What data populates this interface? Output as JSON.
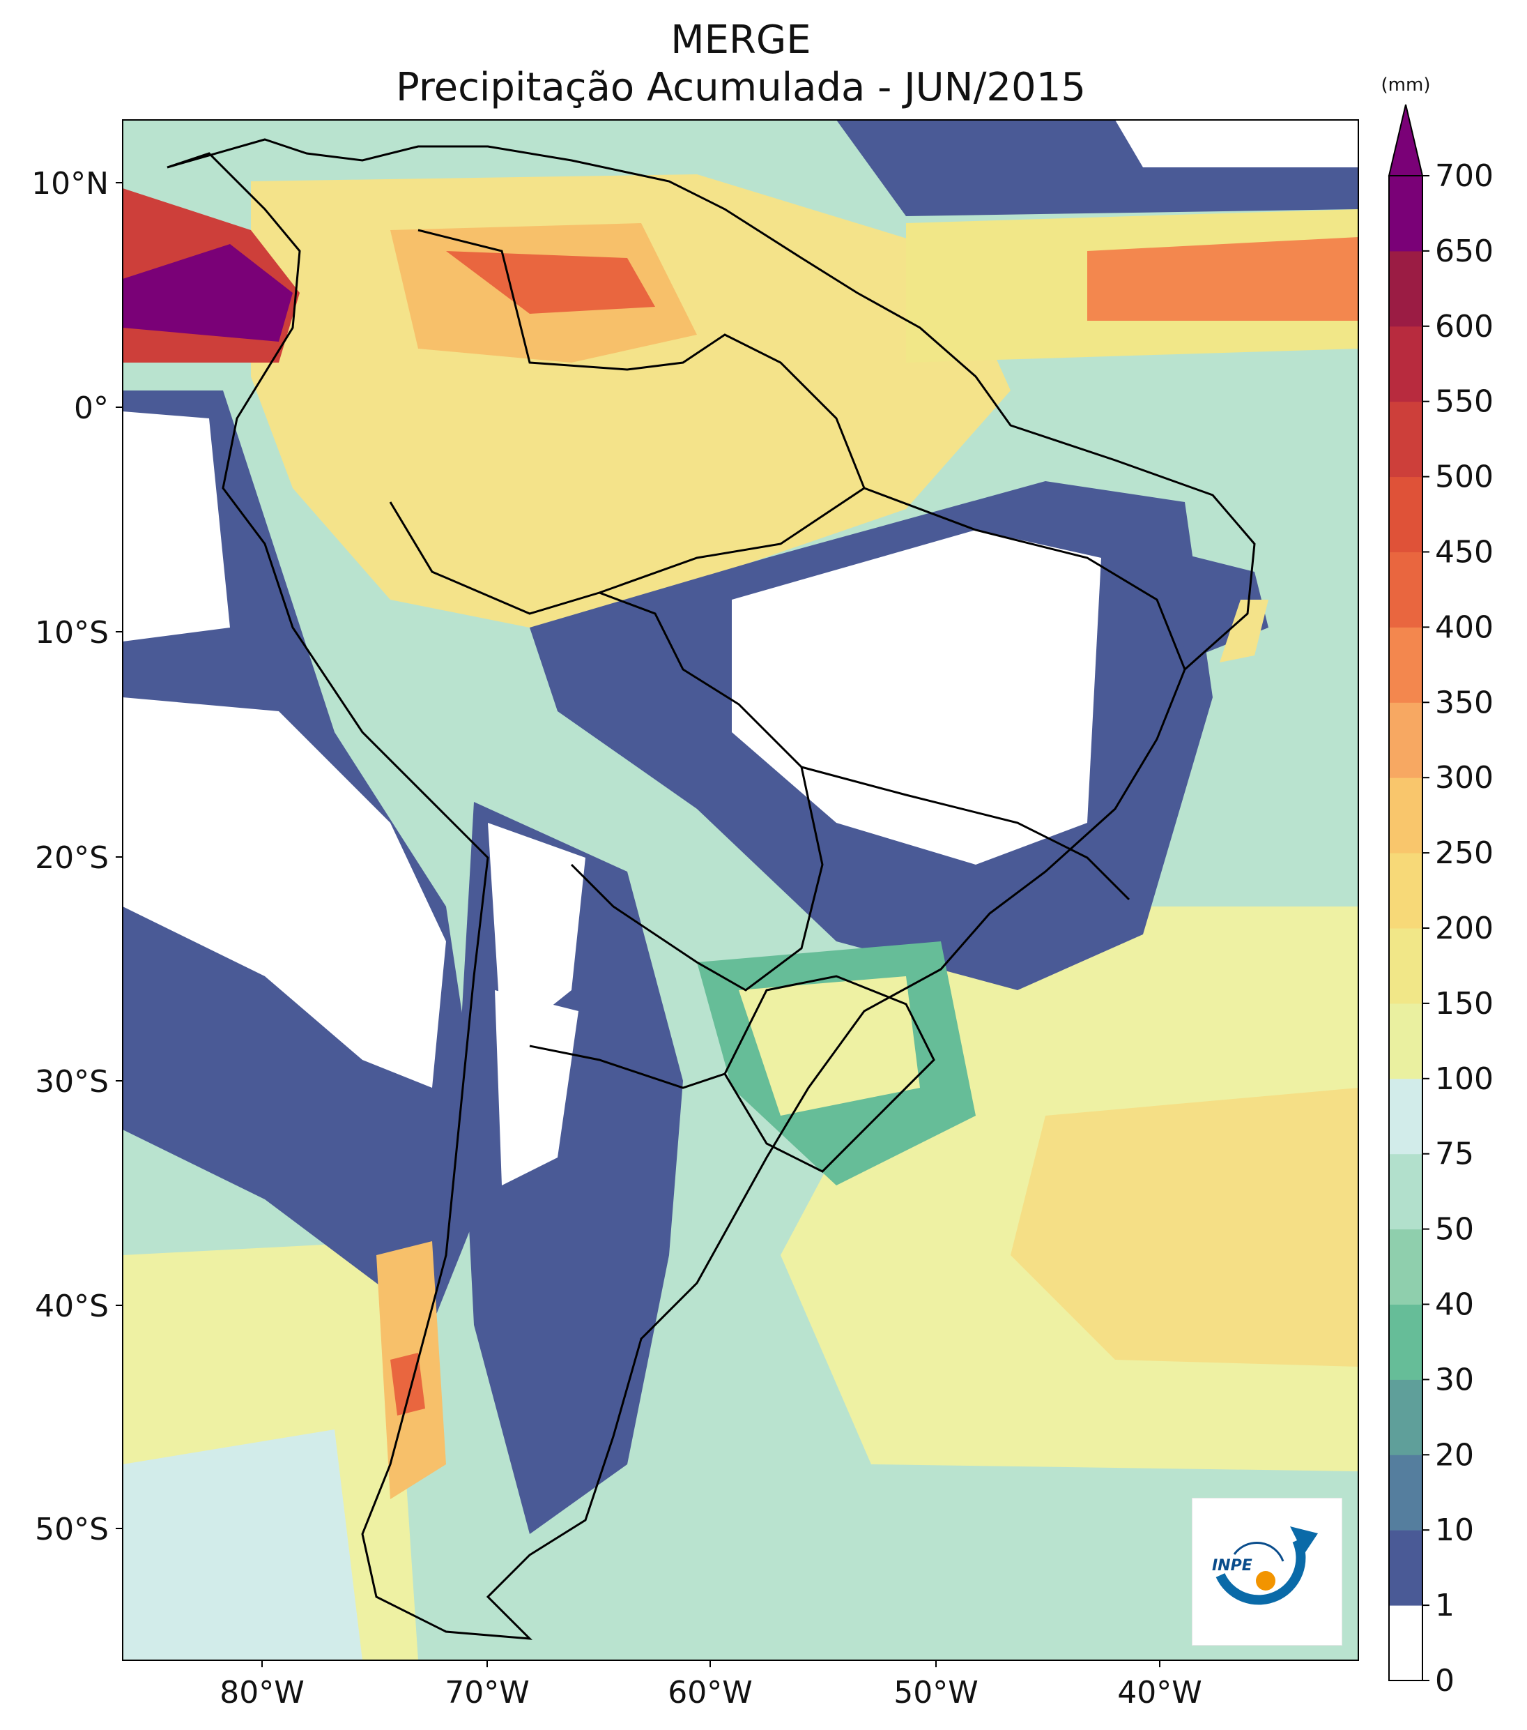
{
  "title": "MERGE",
  "subtitle": "Precipitação Acumulada - JUN/2015",
  "map": {
    "lon_ticks": [
      "80°W",
      "70°W",
      "60°W",
      "50°W",
      "40°W"
    ],
    "lat_ticks": [
      "10°N",
      "0°",
      "10°S",
      "20°S",
      "30°S",
      "40°S",
      "50°S"
    ]
  },
  "colorbar": {
    "unit": "(mm)",
    "levels": [
      "0",
      "1",
      "10",
      "20",
      "30",
      "40",
      "50",
      "75",
      "100",
      "150",
      "200",
      "250",
      "300",
      "350",
      "400",
      "450",
      "500",
      "550",
      "600",
      "650",
      "700"
    ],
    "colors": [
      "#ffffff",
      "#4a5a96",
      "#557e9e",
      "#5f9f9a",
      "#66bd98",
      "#8fcfad",
      "#b2e0cc",
      "#d2ecea",
      "#eaf0a0",
      "#f1e788",
      "#f7d978",
      "#f9c66c",
      "#f7a862",
      "#f3874e",
      "#e9663f",
      "#df5238",
      "#cd3f3a",
      "#b82b3e",
      "#9b1c44",
      "#7a0177"
    ]
  },
  "logo": {
    "text": "INPE"
  }
}
